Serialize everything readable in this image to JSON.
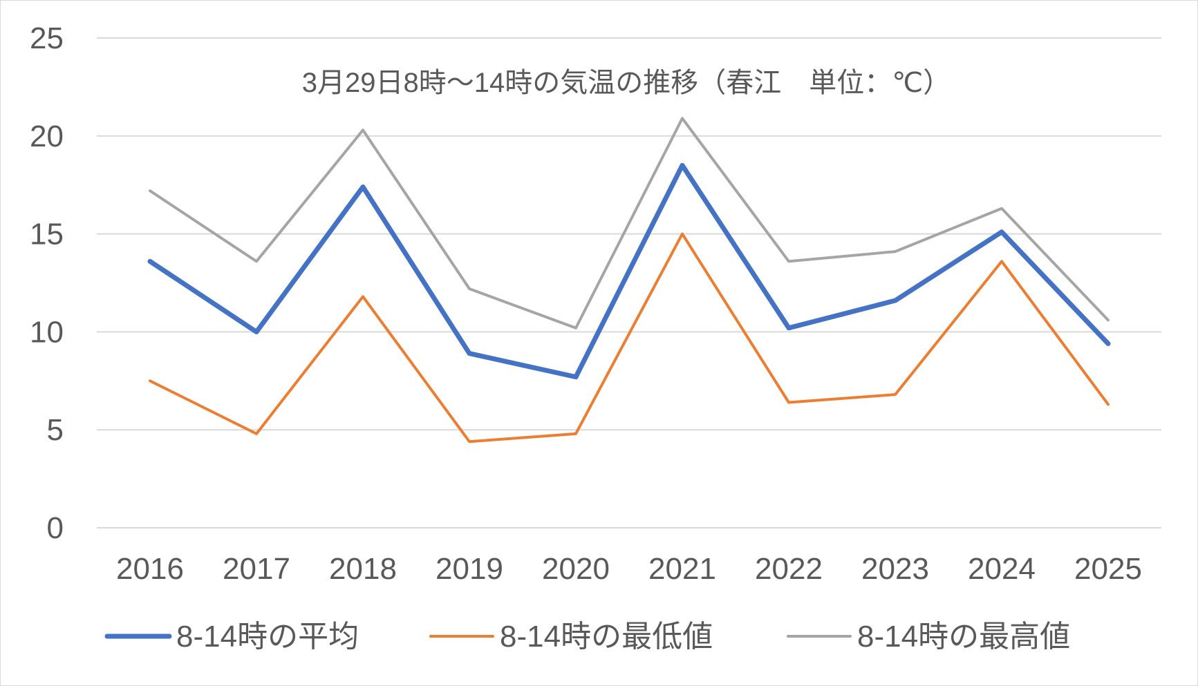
{
  "chart_data": {
    "type": "line",
    "title": "3月29日8時～14時の気温の推移（春江　単位：℃）",
    "xlabel": "",
    "ylabel": "",
    "categories": [
      "2016",
      "2017",
      "2018",
      "2019",
      "2020",
      "2021",
      "2022",
      "2023",
      "2024",
      "2025"
    ],
    "ylim": [
      0,
      25
    ],
    "yticks": [
      "0",
      "5",
      "10",
      "15",
      "20",
      "25"
    ],
    "grid": true,
    "legend_position": "bottom",
    "series": [
      {
        "name": "8-14時の平均",
        "color": "#4472c4",
        "values": [
          13.6,
          10.0,
          17.4,
          8.9,
          7.7,
          18.5,
          10.2,
          11.6,
          15.1,
          9.4
        ]
      },
      {
        "name": "8-14時の最低値",
        "color": "#ed7d31",
        "values": [
          7.5,
          4.8,
          11.8,
          4.4,
          4.8,
          15.0,
          6.4,
          6.8,
          13.6,
          6.3
        ]
      },
      {
        "name": "8-14時の最高値",
        "color": "#a5a5a5",
        "values": [
          17.2,
          13.6,
          20.3,
          12.2,
          10.2,
          20.9,
          13.6,
          14.1,
          16.3,
          10.6
        ]
      }
    ]
  }
}
